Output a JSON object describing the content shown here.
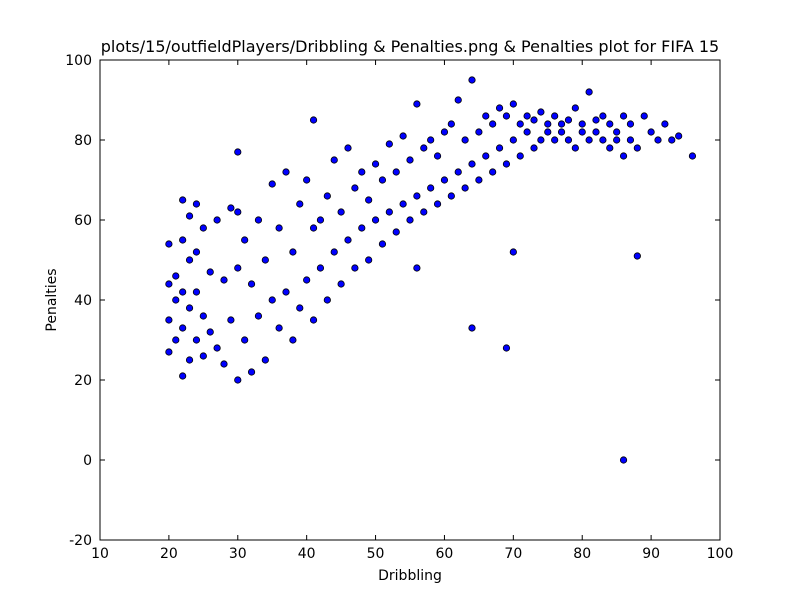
{
  "chart_data": {
    "type": "scatter",
    "title": "plots/15/outfieldPlayers/Dribbling & Penalties.png & Penalties plot for FIFA 15",
    "xlabel": "Dribbling",
    "ylabel": "Penalties",
    "xlim": [
      10,
      100
    ],
    "ylim": [
      -20,
      100
    ],
    "xticks": [
      "10",
      "20",
      "30",
      "40",
      "50",
      "60",
      "70",
      "80",
      "90",
      "100"
    ],
    "yticks": [
      "-20",
      "0",
      "20",
      "40",
      "60",
      "80",
      "100"
    ],
    "grid": false,
    "marker_color": "#0000ff",
    "marker_edge": "#000000",
    "series": [
      {
        "x": [
          20,
          20,
          20,
          20,
          21,
          21,
          21,
          22,
          22,
          22,
          22,
          22,
          23,
          23,
          23,
          23,
          24,
          24,
          24,
          24,
          25,
          25,
          25,
          26,
          26,
          27,
          27,
          28,
          28,
          29,
          29,
          30,
          30,
          30,
          31,
          31,
          32,
          32,
          33,
          33,
          34,
          34,
          35,
          35,
          36,
          36,
          37,
          37,
          38,
          38,
          39,
          39,
          40,
          40,
          41,
          41,
          42,
          42,
          43,
          43,
          44,
          44,
          45,
          45,
          46,
          46,
          47,
          47,
          48,
          48,
          49,
          49,
          50,
          50,
          51,
          51,
          52,
          52,
          53,
          53,
          54,
          54,
          55,
          55,
          56,
          56,
          57,
          57,
          58,
          58,
          59,
          59,
          60,
          60,
          61,
          61,
          62,
          62,
          63,
          63,
          64,
          64,
          65,
          65,
          66,
          66,
          67,
          67,
          68,
          68,
          69,
          69,
          70,
          70,
          71,
          71,
          72,
          72,
          73,
          73,
          74,
          74,
          75,
          75,
          76,
          76,
          77,
          77,
          78,
          78,
          79,
          79,
          80,
          80,
          81,
          81,
          82,
          82,
          83,
          83,
          84,
          84,
          85,
          85,
          86,
          86,
          87,
          87,
          88,
          89,
          90,
          91,
          92,
          93,
          94,
          96,
          86,
          64,
          70,
          69,
          30,
          41,
          56,
          88
        ],
        "y": [
          27,
          35,
          44,
          54,
          30,
          40,
          46,
          21,
          33,
          42,
          55,
          65,
          25,
          38,
          50,
          61,
          30,
          42,
          52,
          64,
          26,
          36,
          58,
          32,
          47,
          28,
          60,
          24,
          45,
          35,
          63,
          20,
          48,
          77,
          30,
          55,
          22,
          44,
          36,
          60,
          25,
          50,
          40,
          69,
          33,
          58,
          42,
          72,
          30,
          52,
          38,
          64,
          45,
          70,
          35,
          85,
          48,
          60,
          40,
          66,
          52,
          75,
          44,
          62,
          55,
          78,
          48,
          68,
          58,
          72,
          50,
          65,
          60,
          74,
          54,
          70,
          62,
          79,
          57,
          72,
          64,
          81,
          60,
          75,
          66,
          89,
          62,
          78,
          68,
          80,
          64,
          76,
          70,
          82,
          66,
          84,
          72,
          90,
          68,
          80,
          74,
          95,
          70,
          82,
          76,
          86,
          72,
          84,
          78,
          88,
          74,
          86,
          80,
          89,
          76,
          84,
          82,
          86,
          78,
          85,
          80,
          87,
          82,
          84,
          80,
          86,
          84,
          82,
          80,
          85,
          78,
          88,
          82,
          84,
          80,
          92,
          82,
          85,
          80,
          86,
          78,
          84,
          82,
          80,
          76,
          86,
          80,
          84,
          78,
          86,
          82,
          80,
          84,
          80,
          81,
          76,
          0,
          33,
          52,
          28,
          62,
          58,
          48,
          51
        ]
      }
    ]
  }
}
